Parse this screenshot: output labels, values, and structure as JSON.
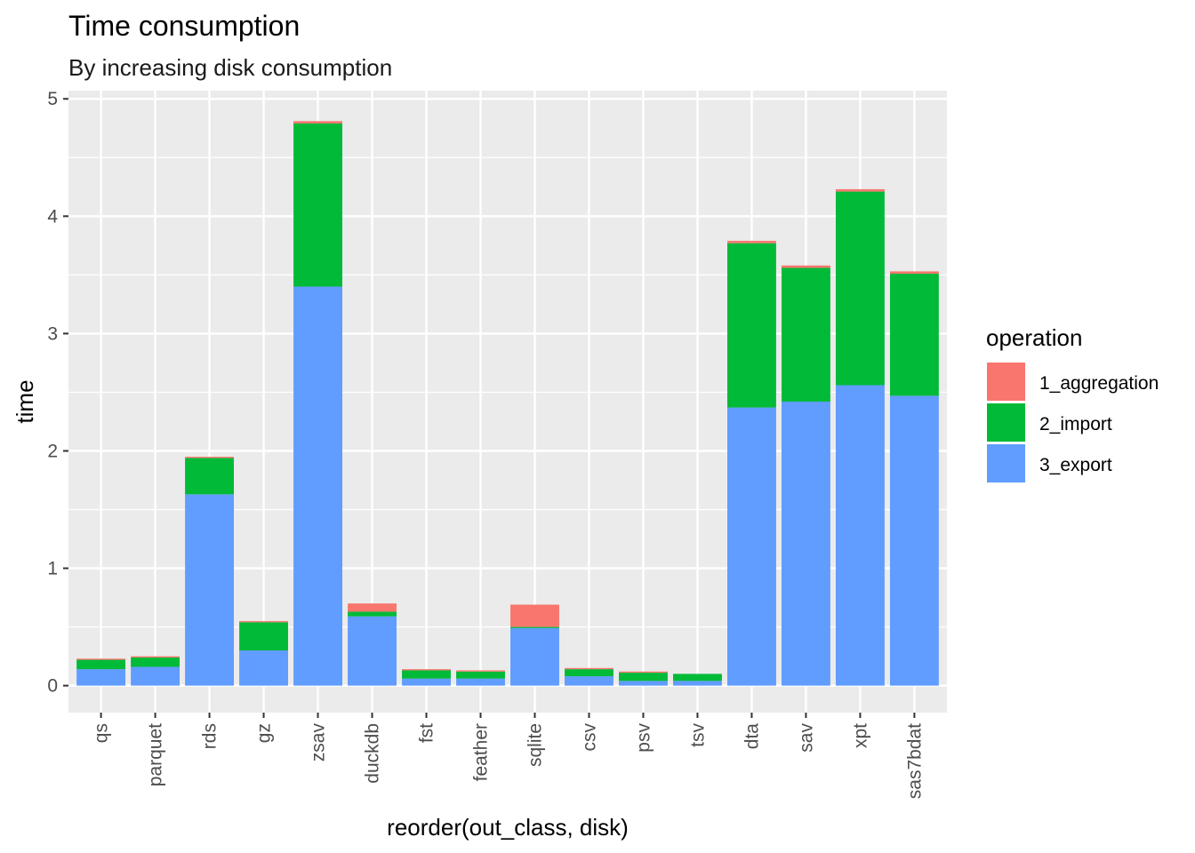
{
  "chart_data": {
    "type": "bar",
    "stacked": true,
    "title": "Time consumption",
    "subtitle": "By increasing disk consumption",
    "xlabel": "reorder(out_class, disk)",
    "ylabel": "time",
    "ylim": [
      -0.23,
      5.07
    ],
    "yticks": [
      0,
      1,
      2,
      3,
      4,
      5
    ],
    "grid": true,
    "legend_title": "operation",
    "legend_position": "right",
    "categories": [
      "qs",
      "parquet",
      "rds",
      "gz",
      "zsav",
      "duckdb",
      "fst",
      "feather",
      "sqlite",
      "csv",
      "psv",
      "tsv",
      "dta",
      "sav",
      "xpt",
      "sas7bdat"
    ],
    "series": [
      {
        "name": "3_export",
        "color": "#619CFF",
        "values": [
          0.14,
          0.16,
          1.63,
          0.3,
          3.4,
          0.59,
          0.06,
          0.06,
          0.49,
          0.08,
          0.04,
          0.04,
          2.37,
          2.42,
          2.56,
          2.47
        ]
      },
      {
        "name": "2_import",
        "color": "#00BA38",
        "values": [
          0.08,
          0.08,
          0.31,
          0.24,
          1.39,
          0.04,
          0.07,
          0.06,
          0.01,
          0.06,
          0.07,
          0.06,
          1.4,
          1.14,
          1.65,
          1.04
        ]
      },
      {
        "name": "1_aggregation",
        "color": "#F8766D",
        "values": [
          0.01,
          0.01,
          0.01,
          0.01,
          0.02,
          0.07,
          0.01,
          0.01,
          0.19,
          0.01,
          0.01,
          0.0,
          0.02,
          0.02,
          0.02,
          0.02
        ]
      }
    ],
    "legend_order": [
      "1_aggregation",
      "2_import",
      "3_export"
    ]
  }
}
